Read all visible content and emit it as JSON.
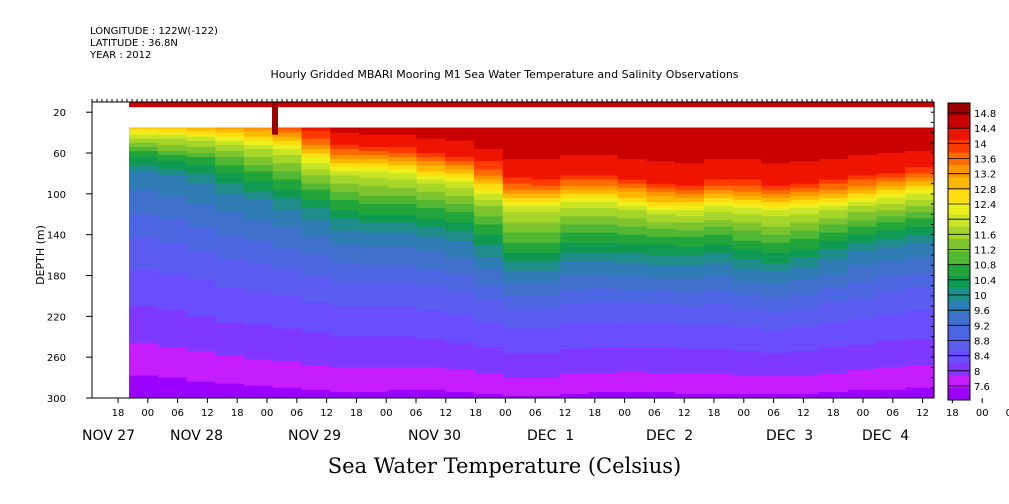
{
  "header": {
    "longitude": "LONGITUDE : 122W(-122)",
    "latitude": "LATITUDE : 36.8N",
    "year": "YEAR : 2012"
  },
  "chart_data": {
    "type": "heatmap",
    "title": "Hourly Gridded MBARI Mooring M1 Sea Water Temperature and Salinity Observations",
    "xlabel": "Sea Water Temperature (Celsius)",
    "ylabel": "DEPTH (m)",
    "ylim": [
      300,
      10
    ],
    "yticks": [
      20,
      60,
      100,
      140,
      180,
      220,
      260,
      300
    ],
    "x_hour_ticks": [
      "18",
      "00",
      "06",
      "12",
      "18",
      "00",
      "06",
      "12",
      "18",
      "00",
      "06",
      "12",
      "18",
      "00",
      "06",
      "12",
      "18",
      "00",
      "06",
      "12",
      "18",
      "00",
      "06",
      "12",
      "18",
      "00",
      "06",
      "12",
      "18",
      "00",
      "06",
      "12"
    ],
    "x_day_labels": [
      "NOV 27",
      "NOV 28",
      "NOV 29",
      "NOV 30",
      "DEC  1",
      "DEC  2",
      "DEC  3",
      "DEC  4"
    ],
    "colorbar": {
      "levels": [
        "14.8",
        "14.4",
        "14",
        "13.6",
        "13.2",
        "12.8",
        "12.4",
        "12",
        "11.6",
        "11.2",
        "10.8",
        "10.4",
        "10",
        "9.6",
        "9.2",
        "8.8",
        "8.4",
        "8",
        "7.6"
      ],
      "min": 7.6,
      "max": 15.0,
      "colors": [
        "#9b00ff",
        "#c51dff",
        "#7f38ff",
        "#6a4dff",
        "#5a5cf0",
        "#4b66e0",
        "#3f70cc",
        "#2f7cb4",
        "#1f8d8a",
        "#0f9a52",
        "#22a53a",
        "#52b733",
        "#7dc42f",
        "#a6d62a",
        "#c9e525",
        "#eef01e",
        "#ffdd10",
        "#ffb800",
        "#ff9500",
        "#ff6a00",
        "#ff3a00",
        "#ee1400",
        "#c90000",
        "#9b0000"
      ]
    },
    "surface_column": {
      "depth_top": 10,
      "depth_bottom": 15
    },
    "isotherm_depths": {
      "times": [
        "11-27T12",
        "11-27T18",
        "11-28T00",
        "11-28T06",
        "11-28T12",
        "11-28T18",
        "11-29T00",
        "11-29T06",
        "11-29T12",
        "11-29T18",
        "11-30T00",
        "11-30T06",
        "11-30T12",
        "11-30T18",
        "12-01T00",
        "12-01T06",
        "12-01T12",
        "12-01T18",
        "12-02T00",
        "12-02T06",
        "12-02T12",
        "12-02T18",
        "12-03T00",
        "12-03T06",
        "12-03T12",
        "12-03T18",
        "12-04T00",
        "12-04T06",
        "12-04T12"
      ],
      "t12": [
        42,
        44,
        45,
        48,
        52,
        55,
        62,
        78,
        82,
        80,
        85,
        90,
        92,
        110,
        118,
        112,
        108,
        112,
        115,
        120,
        118,
        112,
        120,
        118,
        116,
        112,
        108,
        105,
        100
      ],
      "t11": [
        55,
        60,
        62,
        65,
        75,
        80,
        90,
        100,
        110,
        108,
        110,
        115,
        118,
        140,
        155,
        140,
        135,
        140,
        138,
        142,
        140,
        138,
        150,
        145,
        140,
        132,
        128,
        125,
        120
      ],
      "t10": [
        75,
        80,
        85,
        95,
        105,
        110,
        120,
        130,
        140,
        138,
        140,
        145,
        150,
        170,
        180,
        170,
        165,
        170,
        168,
        172,
        170,
        168,
        180,
        175,
        170,
        160,
        155,
        150,
        148
      ],
      "t9": [
        150,
        155,
        160,
        170,
        175,
        180,
        185,
        190,
        195,
        190,
        195,
        200,
        205,
        215,
        220,
        215,
        210,
        212,
        210,
        215,
        215,
        212,
        222,
        218,
        215,
        210,
        205,
        200,
        198
      ],
      "t8": [
        270,
        272,
        275,
        280,
        282,
        285,
        288,
        290,
        292,
        290,
        288,
        290,
        292,
        295,
        296,
        294,
        292,
        292,
        290,
        292,
        293,
        292,
        295,
        293,
        292,
        290,
        288,
        286,
        285
      ]
    }
  }
}
